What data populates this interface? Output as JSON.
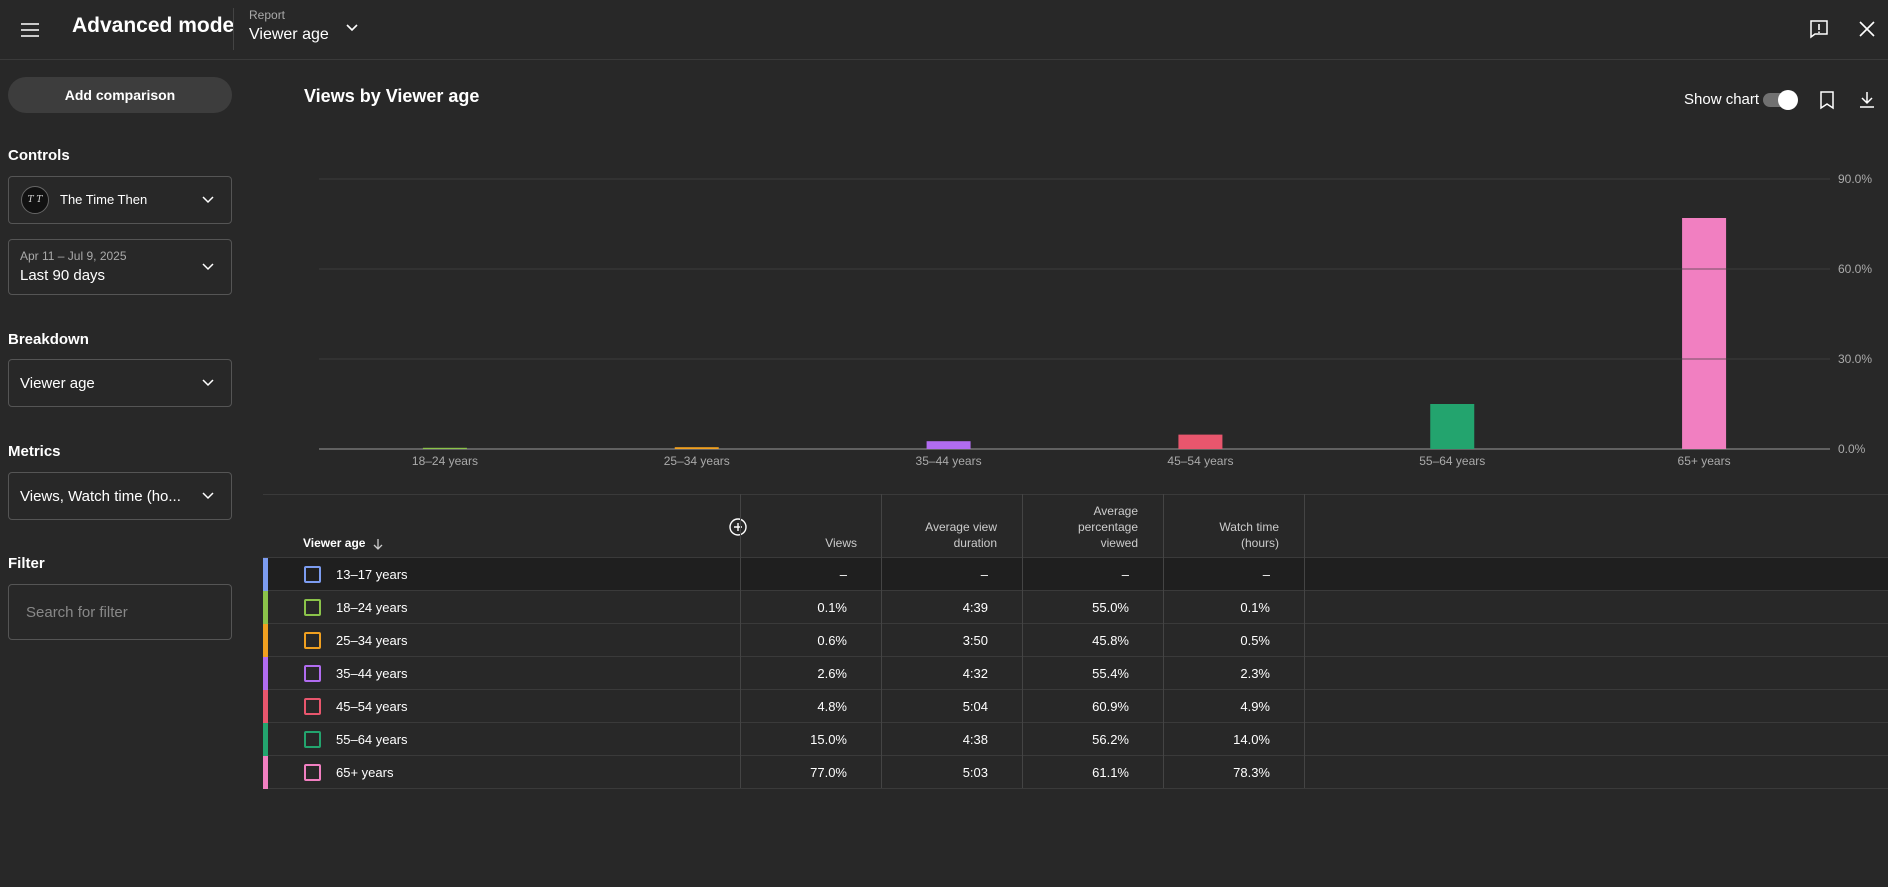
{
  "header": {
    "app_title": "Advanced mode",
    "report_label": "Report",
    "report_value": "Viewer age"
  },
  "sidebar": {
    "add_comparison": "Add comparison",
    "controls_label": "Controls",
    "channel_name": "The Time Then",
    "date_range_small": "Apr 11 – Jul 9, 2025",
    "date_range": "Last 90 days",
    "breakdown_label": "Breakdown",
    "breakdown_value": "Viewer age",
    "metrics_label": "Metrics",
    "metrics_value": "Views, Watch time (ho...",
    "filter_label": "Filter",
    "filter_placeholder": "Search for filter"
  },
  "chart_header": {
    "title": "Views by Viewer age",
    "show_chart_label": "Show chart",
    "show_chart_on": true
  },
  "chart_data": {
    "type": "bar",
    "title": "Views by Viewer age",
    "categories": [
      "18–24 years",
      "25–34 years",
      "35–44 years",
      "45–54 years",
      "55–64 years",
      "65+ years"
    ],
    "values": [
      0.1,
      0.6,
      2.6,
      4.8,
      15.0,
      77.0
    ],
    "colors": [
      "#8bc34a",
      "#f0a020",
      "#b16cf0",
      "#e8566d",
      "#23a46e",
      "#f17fc1"
    ],
    "ylim": [
      0,
      90
    ],
    "yticks": [
      "0.0%",
      "30.0%",
      "60.0%",
      "90.0%"
    ],
    "ytick_values": [
      0,
      30,
      60,
      90
    ],
    "xlabel": "",
    "ylabel": "",
    "grid": true
  },
  "table": {
    "headers": {
      "dimension": "Viewer age",
      "views": "Views",
      "avg_view_duration": "Average view duration",
      "avg_pct_viewed": "Average percentage viewed",
      "watch_time": "Watch time (hours)"
    },
    "rows": [
      {
        "label": "13–17 years",
        "color": "#7c9cf0",
        "views": "–",
        "duration": "–",
        "pct": "–",
        "watch": "–"
      },
      {
        "label": "18–24 years",
        "color": "#8bc34a",
        "views": "0.1%",
        "duration": "4:39",
        "pct": "55.0%",
        "watch": "0.1%"
      },
      {
        "label": "25–34 years",
        "color": "#f0a020",
        "views": "0.6%",
        "duration": "3:50",
        "pct": "45.8%",
        "watch": "0.5%"
      },
      {
        "label": "35–44 years",
        "color": "#b16cf0",
        "views": "2.6%",
        "duration": "4:32",
        "pct": "55.4%",
        "watch": "2.3%"
      },
      {
        "label": "45–54 years",
        "color": "#e8566d",
        "views": "4.8%",
        "duration": "5:04",
        "pct": "60.9%",
        "watch": "4.9%"
      },
      {
        "label": "55–64 years",
        "color": "#23a46e",
        "views": "15.0%",
        "duration": "4:38",
        "pct": "56.2%",
        "watch": "14.0%"
      },
      {
        "label": "65+ years",
        "color": "#f17fc1",
        "views": "77.0%",
        "duration": "5:03",
        "pct": "61.1%",
        "watch": "78.3%"
      }
    ]
  }
}
